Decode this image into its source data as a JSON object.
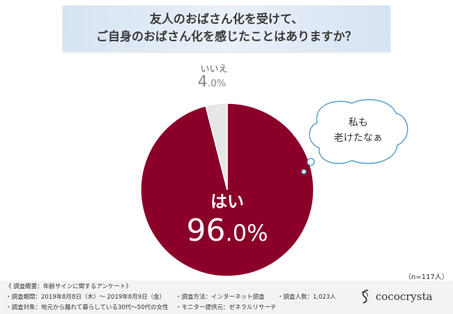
{
  "title": {
    "line1": "友人のおばさん化を受けて、",
    "line2": "ご自身のおばさん化を感じたことはありますか？"
  },
  "chart_data": {
    "type": "pie",
    "slices": [
      {
        "label": "はい",
        "value": 96.0,
        "display": "96.0%",
        "color": "#8b0029"
      },
      {
        "label": "いいえ",
        "value": 4.0,
        "display": "4.0%",
        "color": "#e6e6e6"
      }
    ],
    "annotation": "私も\n老けたなぁ"
  },
  "sample_size": "（n=117人）",
  "footer": {
    "summary": "《 調査概要：年齢サインに関するアンケート》",
    "period": "・調査期間：2019年8月8日（木）～ 2019年8月9日（金）",
    "method": "・調査方法：インターネット調査",
    "count": "・調査人数：1,023人",
    "target": "・調査対象：地元から離れて暮らしている30代～50代の女性",
    "provider": "・モニター提供元：ゼネラルリサーチ"
  },
  "logo": {
    "text": "cococrysta",
    "icon": "cococrysta-logo-icon"
  }
}
